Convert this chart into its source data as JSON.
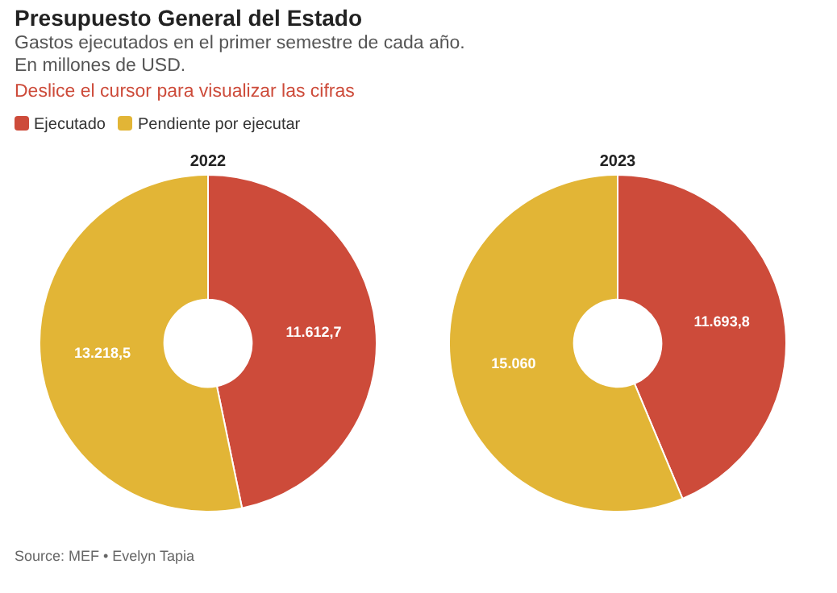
{
  "chart_data": {
    "type": "donut",
    "title": "Presupuesto General del Estado",
    "subtitle": "Gastos ejecutados en el primer semestre de cada año.\nEn millones de USD.",
    "categories": [
      "Ejecutado",
      "Pendiente por ejecutar"
    ],
    "colors": [
      "#cd4b3a",
      "#e2b536"
    ],
    "series": [
      {
        "name": "2022",
        "values": [
          11612.7,
          13218.5
        ],
        "value_labels": [
          "11.612,7",
          "13.218,5"
        ]
      },
      {
        "name": "2023",
        "values": [
          11693.8,
          15060
        ],
        "value_labels": [
          "11.693,8",
          "15.060"
        ]
      }
    ],
    "legend": "top left",
    "annotations": [
      "Deslice el cursor para visualizar las cifras",
      "Source: MEF • Evelyn Tapia"
    ]
  }
}
